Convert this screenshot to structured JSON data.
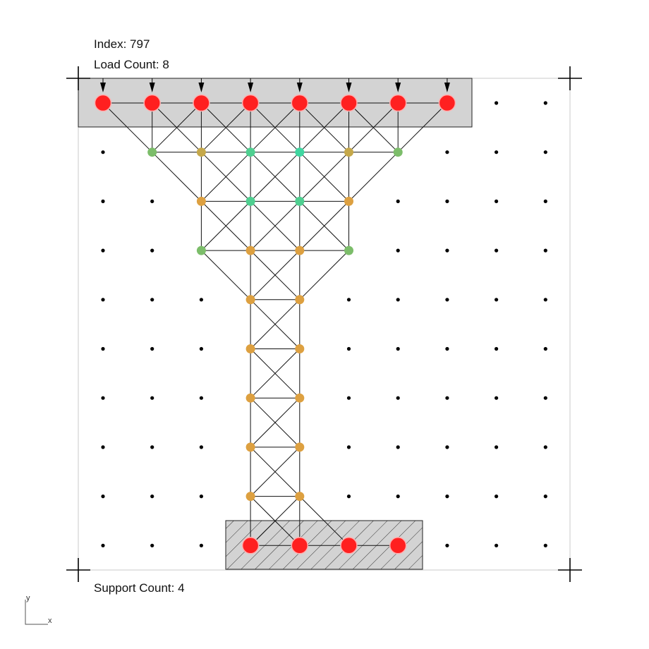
{
  "labels": {
    "index": "Index: 797",
    "load_count": "Load Count: 8",
    "support_count": "Support Count: 4"
  },
  "axis_indicator": {
    "x": "x",
    "y": "y"
  },
  "grid": {
    "columns": 10,
    "rows": 10
  },
  "colors": {
    "background": "#ffffff",
    "boundary": "#c8c8c8",
    "load_region_fill": "#d3d3d3",
    "support_region_fill": "#d3d3d3",
    "hatch": "#333333",
    "member": "#111111",
    "load_node": "#ff2020",
    "load_node_stroke": "#ffb0b0",
    "grid_dot": "#000000",
    "node_orange": "#dda040",
    "node_olive": "#c5a84a",
    "node_green": "#7cbd6a",
    "node_teal": "#4fcf90",
    "node_cyan": "#3fd6a0"
  },
  "load_nodes": [
    [
      0,
      0
    ],
    [
      1,
      0
    ],
    [
      2,
      0
    ],
    [
      3,
      0
    ],
    [
      4,
      0
    ],
    [
      5,
      0
    ],
    [
      6,
      0
    ],
    [
      7,
      0
    ]
  ],
  "support_nodes": [
    [
      3,
      9
    ],
    [
      4,
      9
    ],
    [
      5,
      9
    ],
    [
      6,
      9
    ]
  ],
  "structure_nodes": [
    {
      "p": [
        1,
        1
      ],
      "c": "node_green"
    },
    {
      "p": [
        2,
        1
      ],
      "c": "node_olive"
    },
    {
      "p": [
        3,
        1
      ],
      "c": "node_teal"
    },
    {
      "p": [
        4,
        1
      ],
      "c": "node_cyan"
    },
    {
      "p": [
        5,
        1
      ],
      "c": "node_olive"
    },
    {
      "p": [
        6,
        1
      ],
      "c": "node_green"
    },
    {
      "p": [
        2,
        2
      ],
      "c": "node_orange"
    },
    {
      "p": [
        3,
        2
      ],
      "c": "node_teal"
    },
    {
      "p": [
        4,
        2
      ],
      "c": "node_teal"
    },
    {
      "p": [
        5,
        2
      ],
      "c": "node_orange"
    },
    {
      "p": [
        2,
        3
      ],
      "c": "node_green"
    },
    {
      "p": [
        3,
        3
      ],
      "c": "node_orange"
    },
    {
      "p": [
        4,
        3
      ],
      "c": "node_orange"
    },
    {
      "p": [
        5,
        3
      ],
      "c": "node_green"
    },
    {
      "p": [
        3,
        4
      ],
      "c": "node_orange"
    },
    {
      "p": [
        4,
        4
      ],
      "c": "node_orange"
    },
    {
      "p": [
        3,
        5
      ],
      "c": "node_orange"
    },
    {
      "p": [
        4,
        5
      ],
      "c": "node_orange"
    },
    {
      "p": [
        3,
        6
      ],
      "c": "node_orange"
    },
    {
      "p": [
        4,
        6
      ],
      "c": "node_orange"
    },
    {
      "p": [
        3,
        7
      ],
      "c": "node_orange"
    },
    {
      "p": [
        4,
        7
      ],
      "c": "node_orange"
    },
    {
      "p": [
        3,
        8
      ],
      "c": "node_orange"
    },
    {
      "p": [
        4,
        8
      ],
      "c": "node_orange"
    }
  ],
  "members": [
    [
      [
        0,
        0
      ],
      [
        1,
        0
      ]
    ],
    [
      [
        1,
        0
      ],
      [
        2,
        0
      ]
    ],
    [
      [
        2,
        0
      ],
      [
        3,
        0
      ]
    ],
    [
      [
        3,
        0
      ],
      [
        4,
        0
      ]
    ],
    [
      [
        4,
        0
      ],
      [
        5,
        0
      ]
    ],
    [
      [
        5,
        0
      ],
      [
        6,
        0
      ]
    ],
    [
      [
        6,
        0
      ],
      [
        7,
        0
      ]
    ],
    [
      [
        0,
        0
      ],
      [
        1,
        1
      ]
    ],
    [
      [
        1,
        0
      ],
      [
        1,
        1
      ]
    ],
    [
      [
        1,
        0
      ],
      [
        2,
        1
      ]
    ],
    [
      [
        2,
        0
      ],
      [
        1,
        1
      ]
    ],
    [
      [
        2,
        0
      ],
      [
        2,
        1
      ]
    ],
    [
      [
        2,
        0
      ],
      [
        3,
        1
      ]
    ],
    [
      [
        3,
        0
      ],
      [
        2,
        1
      ]
    ],
    [
      [
        3,
        0
      ],
      [
        3,
        1
      ]
    ],
    [
      [
        3,
        0
      ],
      [
        4,
        1
      ]
    ],
    [
      [
        4,
        0
      ],
      [
        3,
        1
      ]
    ],
    [
      [
        4,
        0
      ],
      [
        4,
        1
      ]
    ],
    [
      [
        4,
        0
      ],
      [
        5,
        1
      ]
    ],
    [
      [
        5,
        0
      ],
      [
        4,
        1
      ]
    ],
    [
      [
        5,
        0
      ],
      [
        5,
        1
      ]
    ],
    [
      [
        5,
        0
      ],
      [
        6,
        1
      ]
    ],
    [
      [
        6,
        0
      ],
      [
        5,
        1
      ]
    ],
    [
      [
        6,
        0
      ],
      [
        6,
        1
      ]
    ],
    [
      [
        7,
        0
      ],
      [
        6,
        1
      ]
    ],
    [
      [
        1,
        1
      ],
      [
        2,
        1
      ]
    ],
    [
      [
        2,
        1
      ],
      [
        3,
        1
      ]
    ],
    [
      [
        3,
        1
      ],
      [
        4,
        1
      ]
    ],
    [
      [
        4,
        1
      ],
      [
        5,
        1
      ]
    ],
    [
      [
        5,
        1
      ],
      [
        6,
        1
      ]
    ],
    [
      [
        1,
        1
      ],
      [
        2,
        2
      ]
    ],
    [
      [
        2,
        1
      ],
      [
        2,
        2
      ]
    ],
    [
      [
        2,
        1
      ],
      [
        3,
        2
      ]
    ],
    [
      [
        3,
        1
      ],
      [
        2,
        2
      ]
    ],
    [
      [
        3,
        1
      ],
      [
        3,
        2
      ]
    ],
    [
      [
        3,
        1
      ],
      [
        4,
        2
      ]
    ],
    [
      [
        4,
        1
      ],
      [
        3,
        2
      ]
    ],
    [
      [
        4,
        1
      ],
      [
        4,
        2
      ]
    ],
    [
      [
        4,
        1
      ],
      [
        5,
        2
      ]
    ],
    [
      [
        5,
        1
      ],
      [
        4,
        2
      ]
    ],
    [
      [
        5,
        1
      ],
      [
        5,
        2
      ]
    ],
    [
      [
        6,
        1
      ],
      [
        5,
        2
      ]
    ],
    [
      [
        2,
        2
      ],
      [
        3,
        2
      ]
    ],
    [
      [
        3,
        2
      ],
      [
        4,
        2
      ]
    ],
    [
      [
        4,
        2
      ],
      [
        5,
        2
      ]
    ],
    [
      [
        2,
        2
      ],
      [
        2,
        3
      ]
    ],
    [
      [
        2,
        2
      ],
      [
        3,
        3
      ]
    ],
    [
      [
        3,
        2
      ],
      [
        2,
        3
      ]
    ],
    [
      [
        3,
        2
      ],
      [
        3,
        3
      ]
    ],
    [
      [
        3,
        2
      ],
      [
        4,
        3
      ]
    ],
    [
      [
        4,
        2
      ],
      [
        3,
        3
      ]
    ],
    [
      [
        4,
        2
      ],
      [
        4,
        3
      ]
    ],
    [
      [
        4,
        2
      ],
      [
        5,
        3
      ]
    ],
    [
      [
        5,
        2
      ],
      [
        4,
        3
      ]
    ],
    [
      [
        5,
        2
      ],
      [
        5,
        3
      ]
    ],
    [
      [
        2,
        3
      ],
      [
        3,
        3
      ]
    ],
    [
      [
        3,
        3
      ],
      [
        4,
        3
      ]
    ],
    [
      [
        4,
        3
      ],
      [
        5,
        3
      ]
    ],
    [
      [
        2,
        3
      ],
      [
        3,
        4
      ]
    ],
    [
      [
        3,
        3
      ],
      [
        3,
        4
      ]
    ],
    [
      [
        3,
        3
      ],
      [
        4,
        4
      ]
    ],
    [
      [
        4,
        3
      ],
      [
        3,
        4
      ]
    ],
    [
      [
        4,
        3
      ],
      [
        4,
        4
      ]
    ],
    [
      [
        5,
        3
      ],
      [
        4,
        4
      ]
    ],
    [
      [
        3,
        4
      ],
      [
        4,
        4
      ]
    ],
    [
      [
        3,
        4
      ],
      [
        3,
        5
      ]
    ],
    [
      [
        4,
        4
      ],
      [
        4,
        5
      ]
    ],
    [
      [
        3,
        4
      ],
      [
        4,
        5
      ]
    ],
    [
      [
        4,
        4
      ],
      [
        3,
        5
      ]
    ],
    [
      [
        3,
        5
      ],
      [
        4,
        5
      ]
    ],
    [
      [
        3,
        5
      ],
      [
        3,
        6
      ]
    ],
    [
      [
        4,
        5
      ],
      [
        4,
        6
      ]
    ],
    [
      [
        3,
        5
      ],
      [
        4,
        6
      ]
    ],
    [
      [
        4,
        5
      ],
      [
        3,
        6
      ]
    ],
    [
      [
        3,
        6
      ],
      [
        4,
        6
      ]
    ],
    [
      [
        3,
        6
      ],
      [
        3,
        7
      ]
    ],
    [
      [
        4,
        6
      ],
      [
        4,
        7
      ]
    ],
    [
      [
        3,
        6
      ],
      [
        4,
        7
      ]
    ],
    [
      [
        4,
        6
      ],
      [
        3,
        7
      ]
    ],
    [
      [
        3,
        7
      ],
      [
        4,
        7
      ]
    ],
    [
      [
        3,
        7
      ],
      [
        3,
        8
      ]
    ],
    [
      [
        4,
        7
      ],
      [
        4,
        8
      ]
    ],
    [
      [
        3,
        7
      ],
      [
        4,
        8
      ]
    ],
    [
      [
        4,
        7
      ],
      [
        3,
        8
      ]
    ],
    [
      [
        3,
        8
      ],
      [
        4,
        8
      ]
    ],
    [
      [
        3,
        8
      ],
      [
        3,
        9
      ]
    ],
    [
      [
        4,
        8
      ],
      [
        4,
        9
      ]
    ],
    [
      [
        3,
        8
      ],
      [
        4,
        9
      ]
    ],
    [
      [
        4,
        8
      ],
      [
        3,
        9
      ]
    ],
    [
      [
        4,
        8
      ],
      [
        5,
        9
      ]
    ],
    [
      [
        3,
        9
      ],
      [
        4,
        9
      ]
    ],
    [
      [
        4,
        9
      ],
      [
        5,
        9
      ]
    ],
    [
      [
        5,
        9
      ],
      [
        6,
        9
      ]
    ]
  ]
}
